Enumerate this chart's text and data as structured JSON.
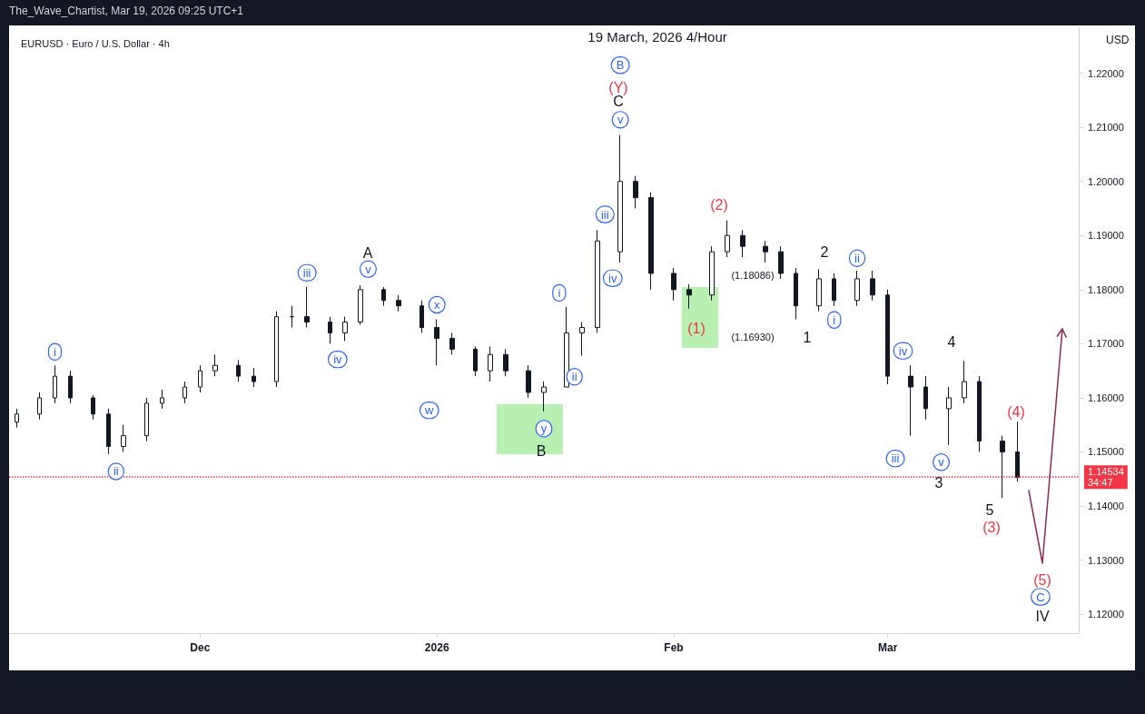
{
  "chart_data": {
    "type": "candlestick",
    "title": "19 March, 2026 4/Hour",
    "subtitle": "EURUSD · Euro / U.S. Dollar · 4h",
    "ylabel": "USD",
    "color": "#131722",
    "x": [
      "2025-11-07",
      "2025-11-10",
      "2025-11-12",
      "2025-11-14",
      "2025-11-17",
      "2025-11-19",
      "2025-11-21",
      "2025-11-24",
      "2025-11-26",
      "2025-11-29",
      "2025-12-01",
      "2025-12-03",
      "2025-12-06",
      "2025-12-08",
      "2025-12-11",
      "2025-12-13",
      "2025-12-15",
      "2025-12-18",
      "2025-12-20",
      "2025-12-22",
      "2025-12-25",
      "2025-12-27",
      "2025-12-30",
      "2026-01-01",
      "2026-01-03",
      "2026-01-06",
      "2026-01-08",
      "2026-01-10",
      "2026-01-13",
      "2026-01-15",
      "2026-01-18",
      "2026-01-20",
      "2026-01-22",
      "2026-01-25",
      "2026-01-27",
      "2026-01-29",
      "2026-02-01",
      "2026-02-03",
      "2026-02-06",
      "2026-02-08",
      "2026-02-10",
      "2026-02-13",
      "2026-02-15",
      "2026-02-17",
      "2026-02-20",
      "2026-02-22",
      "2026-02-25",
      "2026-02-27",
      "2026-03-01",
      "2026-03-04",
      "2026-03-06",
      "2026-03-09",
      "2026-03-11",
      "2026-03-13",
      "2026-03-16",
      "2026-03-18"
    ],
    "ohlc": [
      [
        1.1555,
        1.158,
        1.1545,
        1.157
      ],
      [
        1.157,
        1.161,
        1.156,
        1.16
      ],
      [
        1.16,
        1.166,
        1.159,
        1.164
      ],
      [
        1.164,
        1.165,
        1.159,
        1.16
      ],
      [
        1.16,
        1.1605,
        1.156,
        1.157
      ],
      [
        1.157,
        1.158,
        1.1496,
        1.151
      ],
      [
        1.151,
        1.155,
        1.15,
        1.153
      ],
      [
        1.153,
        1.16,
        1.152,
        1.159
      ],
      [
        1.159,
        1.1615,
        1.158,
        1.16
      ],
      [
        1.16,
        1.163,
        1.159,
        1.162
      ],
      [
        1.162,
        1.166,
        1.161,
        1.165
      ],
      [
        1.165,
        1.168,
        1.164,
        1.166
      ],
      [
        1.166,
        1.167,
        1.163,
        1.164
      ],
      [
        1.164,
        1.1655,
        1.162,
        1.163
      ],
      [
        1.163,
        1.176,
        1.162,
        1.175
      ],
      [
        1.175,
        1.177,
        1.173,
        1.175
      ],
      [
        1.175,
        1.1805,
        1.173,
        1.174
      ],
      [
        1.174,
        1.175,
        1.17,
        1.172
      ],
      [
        1.172,
        1.175,
        1.1705,
        1.174
      ],
      [
        1.174,
        1.1808,
        1.1735,
        1.18
      ],
      [
        1.18,
        1.1805,
        1.177,
        1.178
      ],
      [
        1.178,
        1.179,
        1.176,
        1.177
      ],
      [
        1.177,
        1.178,
        1.172,
        1.173
      ],
      [
        1.173,
        1.1745,
        1.166,
        1.171
      ],
      [
        1.171,
        1.172,
        1.168,
        1.169
      ],
      [
        1.169,
        1.1695,
        1.164,
        1.165
      ],
      [
        1.165,
        1.1695,
        1.163,
        1.168
      ],
      [
        1.168,
        1.169,
        1.164,
        1.165
      ],
      [
        1.165,
        1.166,
        1.16,
        1.161
      ],
      [
        1.161,
        1.163,
        1.1575,
        1.162
      ],
      [
        1.162,
        1.1768,
        1.162,
        1.172
      ],
      [
        1.172,
        1.174,
        1.1678,
        1.173
      ],
      [
        1.173,
        1.191,
        1.172,
        1.189
      ],
      [
        1.187,
        1.2086,
        1.185,
        1.2
      ],
      [
        1.2,
        1.201,
        1.195,
        1.197
      ],
      [
        1.197,
        1.198,
        1.18,
        1.183
      ],
      [
        1.183,
        1.184,
        1.178,
        1.18
      ],
      [
        1.18,
        1.181,
        1.1765,
        1.179
      ],
      [
        1.179,
        1.188,
        1.178,
        1.187
      ],
      [
        1.187,
        1.1928,
        1.186,
        1.19
      ],
      [
        1.19,
        1.191,
        1.186,
        1.188
      ],
      [
        1.188,
        1.189,
        1.185,
        1.187
      ],
      [
        1.187,
        1.188,
        1.182,
        1.183
      ],
      [
        1.183,
        1.184,
        1.1745,
        1.177
      ],
      [
        1.177,
        1.1838,
        1.176,
        1.182
      ],
      [
        1.182,
        1.183,
        1.177,
        1.178
      ],
      [
        1.178,
        1.1835,
        1.177,
        1.182
      ],
      [
        1.182,
        1.1835,
        1.178,
        1.179
      ],
      [
        1.179,
        1.18,
        1.1625,
        1.164
      ],
      [
        1.164,
        1.166,
        1.153,
        1.162
      ],
      [
        1.162,
        1.164,
        1.156,
        1.158
      ],
      [
        1.158,
        1.162,
        1.1513,
        1.16
      ],
      [
        1.16,
        1.1668,
        1.159,
        1.163
      ],
      [
        1.163,
        1.164,
        1.15,
        1.152
      ],
      [
        1.152,
        1.153,
        1.1415,
        1.15
      ],
      [
        1.15,
        1.1556,
        1.1445,
        1.1453
      ]
    ],
    "xlim": [
      "2025-11-06",
      "2026-03-26"
    ],
    "xticks": [
      {
        "value": "2025-12-01",
        "label": "Dec"
      },
      {
        "value": "2026-01-01",
        "label": "2026"
      },
      {
        "value": "2026-02-01",
        "label": "Feb"
      },
      {
        "value": "2026-03-01",
        "label": "Mar"
      }
    ],
    "ylim": [
      1.1165,
      1.2285
    ],
    "yticks": [
      {
        "value": 1.12,
        "label": "1.12000"
      },
      {
        "value": 1.13,
        "label": "1.13000"
      },
      {
        "value": 1.14,
        "label": "1.14000"
      },
      {
        "value": 1.15,
        "label": "1.15000"
      },
      {
        "value": 1.16,
        "label": "1.16000"
      },
      {
        "value": 1.17,
        "label": "1.17000"
      },
      {
        "value": 1.18,
        "label": "1.18000"
      },
      {
        "value": 1.19,
        "label": "1.19000"
      },
      {
        "value": 1.2,
        "label": "1.20000"
      },
      {
        "value": 1.21,
        "label": "1.21000"
      },
      {
        "value": 1.22,
        "label": "1.22000"
      }
    ],
    "ref_lines": [
      {
        "axis": "y",
        "value": 1.14534,
        "label": "1.14534\n34:47",
        "color": "#f23645",
        "line_style": "dotted"
      }
    ],
    "annotations": [
      "The_Wave_Chartist, Mar 19, 2026 09:25 UTC+1",
      {
        "text": "i",
        "x": "2025-11-12",
        "y": 1.1685
      },
      {
        "text": "ii",
        "x": "2025-11-20",
        "y": 1.1464
      },
      {
        "text": "iii",
        "x": "2025-12-15",
        "y": 1.1831
      },
      {
        "text": "iv",
        "x": "2025-12-19",
        "y": 1.1671
      },
      {
        "text": "v",
        "x": "2025-12-23",
        "y": 1.1838
      },
      {
        "text": "w",
        "x": "2025-12-31",
        "y": 1.1577
      },
      {
        "text": "x",
        "x": "2026-01-01",
        "y": 1.1772
      },
      {
        "text": "y",
        "x": "2026-01-15",
        "y": 1.1543
      },
      {
        "text": "i",
        "x": "2026-01-17",
        "y": 1.1794
      },
      {
        "text": "ii",
        "x": "2026-01-19",
        "y": 1.1639
      },
      {
        "text": "iii",
        "x": "2026-01-23",
        "y": 1.1939
      },
      {
        "text": "iv",
        "x": "2026-01-24",
        "y": 1.1821
      },
      {
        "text": "v",
        "x": "2026-01-25",
        "y": 1.2114
      },
      {
        "text": "B",
        "x": "2026-01-25",
        "y": 1.2215
      },
      {
        "text": "i",
        "x": "2026-02-22",
        "y": 1.1744
      },
      {
        "text": "ii",
        "x": "2026-02-25",
        "y": 1.1858
      },
      {
        "text": "iii",
        "x": "2026-03-02",
        "y": 1.1488
      },
      {
        "text": "iv",
        "x": "2026-03-03",
        "y": 1.1687
      },
      {
        "text": "v",
        "x": "2026-03-08",
        "y": 1.1481
      },
      {
        "text": "C",
        "x": "2026-03-21",
        "y": 1.1232
      },
      "(Y)",
      "(2)",
      "(1)",
      "(4)",
      "(3)",
      "(5)",
      "A",
      "C",
      "B",
      "1",
      "2",
      "3",
      "4",
      "5",
      "IV",
      "(1.18086)",
      "(1.16930)"
    ]
  }
}
